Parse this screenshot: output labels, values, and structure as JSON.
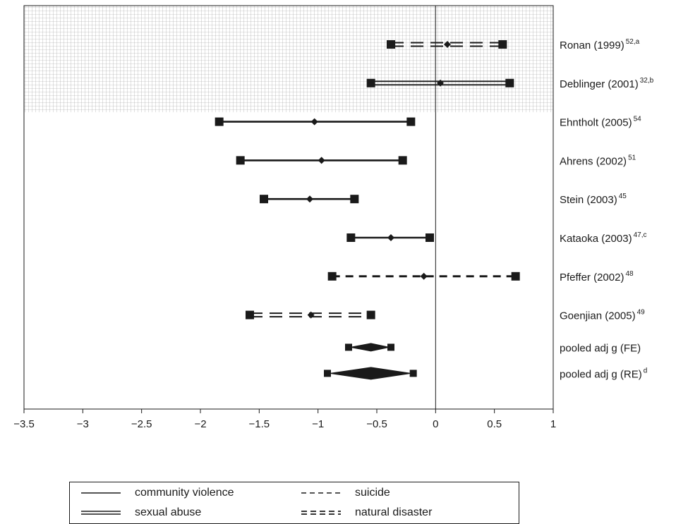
{
  "chart_data": {
    "type": "forest",
    "xlim": [
      -3.5,
      1
    ],
    "x_ticks": [
      "−3.5",
      "−3",
      "−2.5",
      "−2",
      "−1.5",
      "−1",
      "−0.5",
      "0",
      "0.5",
      "1"
    ],
    "x_tick_values": [
      -3.5,
      -3,
      -2.5,
      -2,
      -1.5,
      -1,
      -0.5,
      0,
      0.5,
      1
    ],
    "reference_line": 0,
    "shaded_region_rows": [
      0,
      1
    ],
    "studies": [
      {
        "label": "Ronan (1999)",
        "sup": "52,a",
        "lower": -0.38,
        "estimate": 0.1,
        "upper": 0.57,
        "category": "natural disaster"
      },
      {
        "label": "Deblinger (2001)",
        "sup": "32,b",
        "lower": -0.55,
        "estimate": 0.04,
        "upper": 0.63,
        "category": "sexual abuse"
      },
      {
        "label": "Ehntholt (2005)",
        "sup": "54",
        "lower": -1.84,
        "estimate": -1.03,
        "upper": -0.21,
        "category": "community violence"
      },
      {
        "label": "Ahrens (2002)",
        "sup": "51",
        "lower": -1.66,
        "estimate": -0.97,
        "upper": -0.28,
        "category": "community violence"
      },
      {
        "label": "Stein (2003)",
        "sup": "45",
        "lower": -1.46,
        "estimate": -1.07,
        "upper": -0.69,
        "category": "community violence"
      },
      {
        "label": "Kataoka (2003)",
        "sup": "47,c",
        "lower": -0.72,
        "estimate": -0.38,
        "upper": -0.05,
        "category": "community violence"
      },
      {
        "label": "Pfeffer (2002)",
        "sup": "48",
        "lower": -0.88,
        "estimate": -0.1,
        "upper": 0.68,
        "category": "suicide"
      },
      {
        "label": "Goenjian (2005)",
        "sup": "49",
        "lower": -1.58,
        "estimate": -1.06,
        "upper": -0.55,
        "category": "natural disaster"
      }
    ],
    "pooled": [
      {
        "label": "pooled adj g (FE)",
        "sup": "",
        "lower": -0.74,
        "estimate": -0.55,
        "upper": -0.38
      },
      {
        "label": "pooled adj g (RE)",
        "sup": "d",
        "lower": -0.92,
        "estimate": -0.55,
        "upper": -0.19
      }
    ]
  },
  "legend": {
    "items": [
      {
        "label": "community violence",
        "style": "solid"
      },
      {
        "label": "suicide",
        "style": "dashed"
      },
      {
        "label": "sexual abuse",
        "style": "double"
      },
      {
        "label": "natural disaster",
        "style": "double-dashed"
      }
    ]
  },
  "colors": {
    "ink": "#1a1a1a",
    "grid": "#9a9a9a",
    "background": "#ffffff"
  }
}
